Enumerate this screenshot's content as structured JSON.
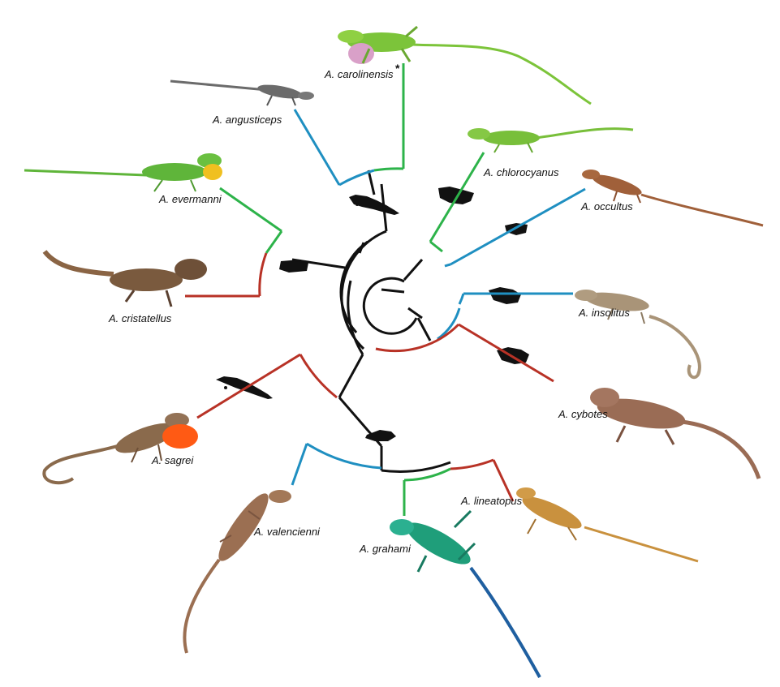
{
  "figure": {
    "clade_colors": {
      "green": "#2db34a",
      "blue": "#1f8fc1",
      "red": "#b83226",
      "black": "#111111"
    },
    "taxa": [
      {
        "id": "carolinensis",
        "label": "A. carolinensis",
        "marker": "*",
        "clade": "green",
        "body_color": "#7cc43a"
      },
      {
        "id": "angusticeps",
        "label": "A. angusticeps",
        "clade": "blue",
        "body_color": "#6b6b6b"
      },
      {
        "id": "chlorocyanus",
        "label": "A. chlorocyanus",
        "clade": "green",
        "body_color": "#78bf3a"
      },
      {
        "id": "occultus",
        "label": "A. occultus",
        "clade": "blue",
        "body_color": "#a0603a"
      },
      {
        "id": "evermanni",
        "label": "A. evermanni",
        "clade": "green",
        "body_color": "#5fb53a"
      },
      {
        "id": "cristatellus",
        "label": "A. cristatellus",
        "clade": "red",
        "body_color": "#7a5a3e"
      },
      {
        "id": "insolitus",
        "label": "A. insolitus",
        "clade": "blue",
        "body_color": "#a99478"
      },
      {
        "id": "cybotes",
        "label": "A. cybotes",
        "clade": "red",
        "body_color": "#9a6c55"
      },
      {
        "id": "sagrei",
        "label": "A. sagrei",
        "clade": "red",
        "body_color": "#8a6a4c",
        "dewlap_color": "#ff5a14"
      },
      {
        "id": "lineatopus",
        "label": "A. lineatopus",
        "clade": "red",
        "body_color": "#c9913e"
      },
      {
        "id": "valencienni",
        "label": "A. valencienni",
        "clade": "blue",
        "body_color": "#9b6f52"
      },
      {
        "id": "grahami",
        "label": "A. grahami",
        "clade": "green",
        "body_color": "#1f9e7a"
      }
    ],
    "islands": [
      "cuba-silhouette",
      "hispaniola-silhouette",
      "puerto-rico-silhouette",
      "jamaica-silhouette"
    ]
  }
}
